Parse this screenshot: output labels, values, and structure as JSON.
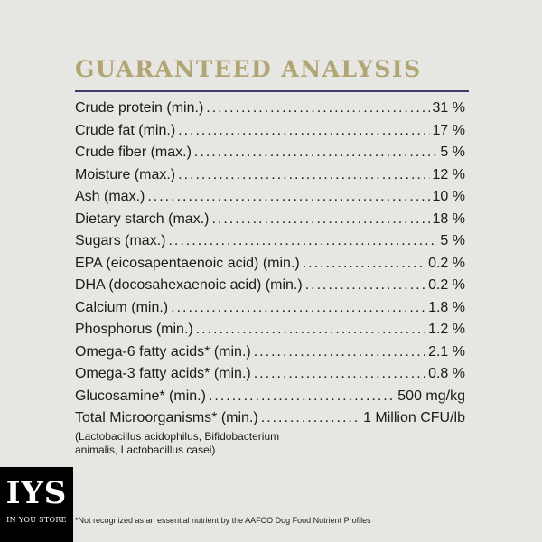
{
  "heading": "GUARANTEED ANALYSIS",
  "rows": [
    {
      "label": "Crude protein (min.)",
      "value": "31 %"
    },
    {
      "label": "Crude fat (min.)",
      "value": "17 %"
    },
    {
      "label": "Crude fiber (max.)",
      "value": "5 %"
    },
    {
      "label": "Moisture (max.)",
      "value": "12 %"
    },
    {
      "label": "Ash (max.)",
      "value": "10 %"
    },
    {
      "label": "Dietary starch (max.)",
      "value": "18 %"
    },
    {
      "label": "Sugars (max.)",
      "value": "5 %"
    },
    {
      "label": "EPA (eicosapentaenoic acid) (min.)",
      "value": "0.2 %"
    },
    {
      "label": "DHA (docosahexaenoic acid) (min.)",
      "value": "0.2 %"
    },
    {
      "label": "Calcium (min.)",
      "value": "1.8 %"
    },
    {
      "label": "Phosphorus (min.)",
      "value": "1.2 %"
    },
    {
      "label": "Omega-6 fatty acids* (min.)",
      "value": "2.1 %"
    },
    {
      "label": "Omega-3 fatty acids* (min.)",
      "value": "0.8 %"
    },
    {
      "label": "Glucosamine* (min.)",
      "value": "500 mg/kg"
    },
    {
      "label": "Total Microorganisms* (min.)",
      "value": "1 Million CFU/lb"
    }
  ],
  "microorganisms_note": "(Lactobacillus acidophilus, Bifidobacterium animalis, Lactobacillus casei)",
  "footnote": "*Not recognized as an essential nutrient by the AAFCO Dog Food Nutrient Profiles",
  "logo": {
    "main": "IYS",
    "sub": "IN YOU STORE"
  },
  "colors": {
    "heading": "#b1a574",
    "rule": "#3c3c6a",
    "background": "#e6e6e3"
  }
}
